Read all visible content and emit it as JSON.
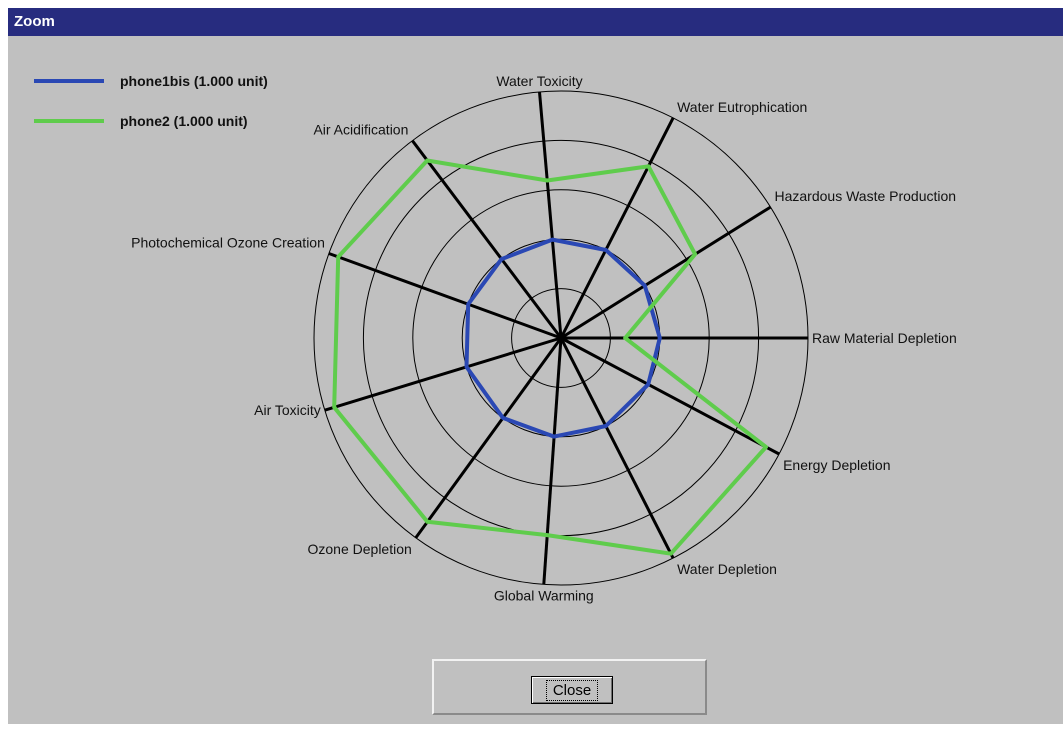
{
  "window": {
    "title": "Zoom"
  },
  "close_button": {
    "label": "Close"
  },
  "chart_data": {
    "type": "radar",
    "categories": [
      "Raw Material Depletion",
      "Hazardous Waste Production",
      "Water Eutrophication",
      "Water Toxicity",
      "Air Acidification",
      "Photochemical Ozone Creation",
      "Air Toxicity",
      "Ozone Depletion",
      "Global Warming",
      "Water Depletion",
      "Energy Depletion"
    ],
    "rlim": [
      0,
      5
    ],
    "rings": 5,
    "series": [
      {
        "name": "phone1bis (1.000 unit)",
        "color": "#2a48b4",
        "values": [
          2,
          2,
          2,
          2,
          2,
          2,
          2,
          2,
          2,
          2,
          2
        ]
      },
      {
        "name": "phone2 (1.000 unit)",
        "color": "#5fcc4c",
        "values": [
          1.3,
          3.2,
          3.9,
          3.2,
          4.5,
          4.8,
          4.8,
          4.6,
          4.0,
          4.9,
          4.7
        ]
      }
    ],
    "legend_position": "top-left"
  }
}
